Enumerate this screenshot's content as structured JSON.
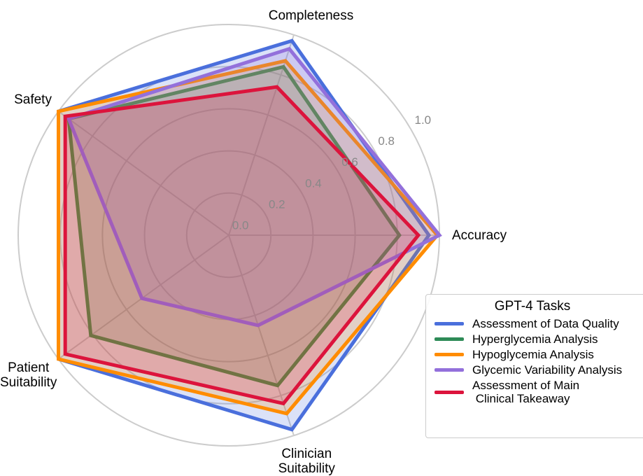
{
  "chart_data": {
    "type": "radar",
    "categories": [
      "Accuracy",
      "Completeness",
      "Safety",
      "Patient\nSuitability",
      "Clinician\nSuitability"
    ],
    "ylim": [
      0,
      1
    ],
    "yticks": [
      {
        "value": 0,
        "label": "0.0"
      },
      {
        "value": 0.2,
        "label": "0.2"
      },
      {
        "value": 0.4,
        "label": "0.4"
      },
      {
        "value": 0.6,
        "label": "0.6"
      },
      {
        "value": 0.8,
        "label": "0.8"
      },
      {
        "value": 1.0,
        "label": "1.0"
      }
    ],
    "grid": true,
    "legend_title": "GPT-4 Tasks",
    "legend_position": "lower right",
    "series": [
      {
        "name": "Assessment of Data Quality",
        "color": "#4a6fdc",
        "values": [
          0.95,
          0.97,
          1.0,
          1.0,
          0.97
        ]
      },
      {
        "name": "Hyperglycemia Analysis",
        "color": "#2e8b57",
        "values": [
          0.81,
          0.84,
          0.94,
          0.81,
          0.75
        ]
      },
      {
        "name": "Hypoglycemia Analysis",
        "color": "#ff8c00",
        "values": [
          0.99,
          0.87,
          1.0,
          1.0,
          0.89
        ]
      },
      {
        "name": "Glycemic Variability Analysis",
        "color": "#9370db",
        "values": [
          1.0,
          0.93,
          0.94,
          0.51,
          0.45
        ]
      },
      {
        "name": "Assessment of Main\n Clinical Takeaway",
        "color": "#dc143c",
        "values": [
          0.9,
          0.74,
          0.96,
          0.96,
          0.84
        ]
      }
    ]
  }
}
